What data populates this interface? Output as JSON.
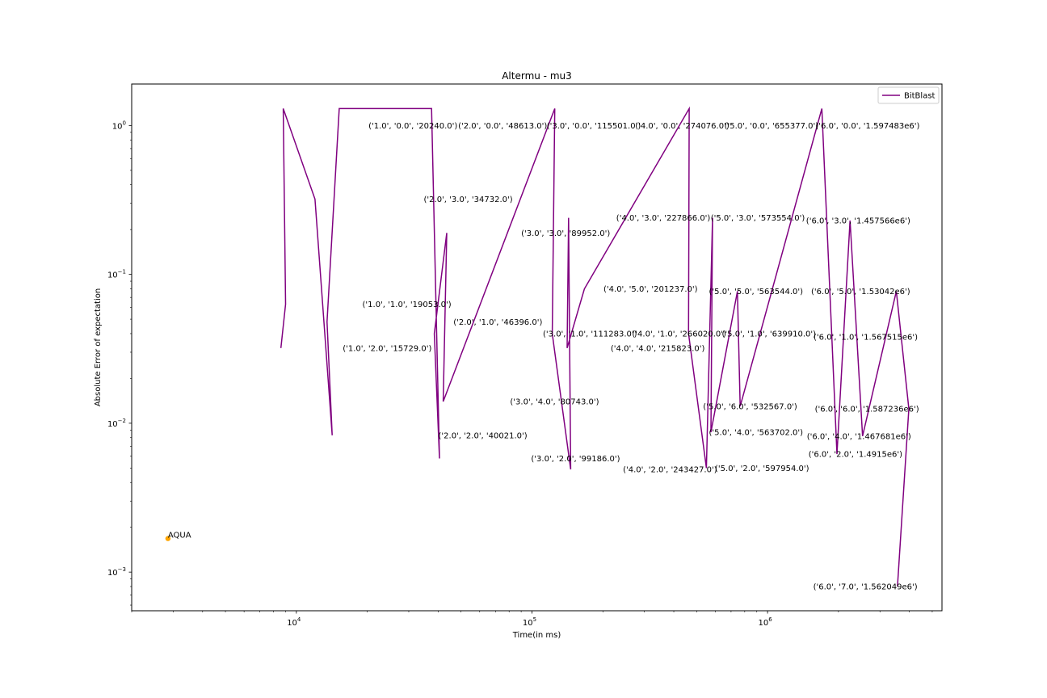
{
  "chart_data": {
    "type": "line",
    "title": "Altermu - mu3",
    "xlabel": "Time(in ms)",
    "ylabel": "Absolute Error of expectation",
    "xscale": "log",
    "yscale": "log",
    "xlim": [
      2000,
      5500000
    ],
    "ylim": [
      0.00055,
      1.9
    ],
    "grid": false,
    "legend": {
      "position": "upper right",
      "entries": [
        {
          "label": "BitBlast",
          "color": "#800080"
        }
      ]
    },
    "x_ticks": [
      {
        "value": 10000,
        "base": "10",
        "exp": "4"
      },
      {
        "value": 100000,
        "base": "10",
        "exp": "5"
      },
      {
        "value": 1000000,
        "base": "10",
        "exp": "6"
      }
    ],
    "y_ticks": [
      {
        "value": 0.001,
        "base": "10",
        "exp": "−3"
      },
      {
        "value": 0.01,
        "base": "10",
        "exp": "−2"
      },
      {
        "value": 0.1,
        "base": "10",
        "exp": "−1"
      },
      {
        "value": 1,
        "base": "10",
        "exp": "0"
      }
    ],
    "series": [
      {
        "name": "BitBlast",
        "color": "#800080",
        "points": [
          {
            "x": 20240,
            "y": 1.0,
            "label": "('1.0', '0.0', '20240.0')"
          },
          {
            "x": 19053,
            "y": 0.063,
            "label": "('1.0', '1.0', '19053.0')"
          },
          {
            "x": 15729,
            "y": 0.032,
            "label": "('1.0', '2.0', '15729.0')"
          },
          {
            "x": 48613,
            "y": 1.0,
            "label": "('2.0', '0.0', '48613.0')"
          },
          {
            "x": 46396,
            "y": 0.048,
            "label": "('2.0', '1.0', '46396.0')"
          },
          {
            "x": 40021,
            "y": 0.0083,
            "label": "('2.0', '2.0', '40021.0')"
          },
          {
            "x": 34732,
            "y": 0.32,
            "label": "('2.0', '3.0', '34732.0')"
          },
          {
            "x": 115501,
            "y": 1.0,
            "label": "('3.0', '0.0', '115501.0')"
          },
          {
            "x": 111283,
            "y": 0.04,
            "label": "('3.0', '1.0', '111283.0')"
          },
          {
            "x": 99186,
            "y": 0.0058,
            "label": "('3.0', '2.0', '99186.0')"
          },
          {
            "x": 89952,
            "y": 0.19,
            "label": "('3.0', '3.0', '89952.0')"
          },
          {
            "x": 80743,
            "y": 0.014,
            "label": "('3.0', '4.0', '80743.0')"
          },
          {
            "x": 274076,
            "y": 1.0,
            "label": "('4.0', '0.0', '274076.0')"
          },
          {
            "x": 266020,
            "y": 0.04,
            "label": "('4.0', '1.0', '266020.0')"
          },
          {
            "x": 243427,
            "y": 0.0049,
            "label": "('4.0', '2.0', '243427.0')"
          },
          {
            "x": 227866,
            "y": 0.24,
            "label": "('4.0', '3.0', '227866.0')"
          },
          {
            "x": 215823,
            "y": 0.032,
            "label": "('4.0', '4.0', '215823.0')"
          },
          {
            "x": 201237,
            "y": 0.08,
            "label": "('4.0', '5.0', '201237.0')"
          },
          {
            "x": 655377,
            "y": 1.0,
            "label": "('5.0', '0.0', '655377.0')"
          },
          {
            "x": 639910,
            "y": 0.04,
            "label": "('5.0', '1.0', '639910.0')"
          },
          {
            "x": 597954,
            "y": 0.005,
            "label": "('5.0', '2.0', '597954.0')"
          },
          {
            "x": 573554,
            "y": 0.24,
            "label": "('5.0', '3.0', '573554.0')"
          },
          {
            "x": 563702,
            "y": 0.0087,
            "label": "('5.0', '4.0', '563702.0')"
          },
          {
            "x": 563544,
            "y": 0.077,
            "label": "('5.0', '5.0', '563544.0')"
          },
          {
            "x": 532567,
            "y": 0.013,
            "label": "('5.0', '6.0', '532567.0')"
          },
          {
            "x": 1597483,
            "y": 1.0,
            "label": "('6.0', '0.0', '1.597483e6')"
          },
          {
            "x": 1567515,
            "y": 0.038,
            "label": "('6.0', '1.0', '1.567515e6')"
          },
          {
            "x": 1491500,
            "y": 0.0062,
            "label": "('6.0', '2.0', '1.4915e6')"
          },
          {
            "x": 1457566,
            "y": 0.23,
            "label": "('6.0', '3.0', '1.457566e6')"
          },
          {
            "x": 1467681,
            "y": 0.0082,
            "label": "('6.0', '4.0', '1.467681e6')"
          },
          {
            "x": 1530420,
            "y": 0.077,
            "label": "('6.0', '5.0', '1.53042e6')"
          },
          {
            "x": 1587236,
            "y": 0.0125,
            "label": "('6.0', '6.0', '1.587236e6')"
          },
          {
            "x": 1562049,
            "y": 0.0008,
            "label": "('6.0', '7.0', '1.562049e6')"
          }
        ],
        "line_path": [
          {
            "x": 8600,
            "y": 0.032
          },
          {
            "x": 9000,
            "y": 0.063
          },
          {
            "x": 8800,
            "y": 1.3
          },
          {
            "x": 12000,
            "y": 0.32
          },
          {
            "x": 14200,
            "y": 0.0083
          },
          {
            "x": 13500,
            "y": 0.048
          },
          {
            "x": 15200,
            "y": 1.3
          },
          {
            "x": 37500,
            "y": 1.3
          },
          {
            "x": 40500,
            "y": 0.0058
          },
          {
            "x": 38500,
            "y": 0.04
          },
          {
            "x": 43500,
            "y": 0.19
          },
          {
            "x": 42000,
            "y": 0.014
          },
          {
            "x": 125000,
            "y": 1.3
          },
          {
            "x": 122000,
            "y": 0.04
          },
          {
            "x": 146000,
            "y": 0.0049
          },
          {
            "x": 143000,
            "y": 0.24
          },
          {
            "x": 141000,
            "y": 0.032
          },
          {
            "x": 167000,
            "y": 0.08
          },
          {
            "x": 465000,
            "y": 1.3
          },
          {
            "x": 462000,
            "y": 0.04
          },
          {
            "x": 550000,
            "y": 0.005
          },
          {
            "x": 584000,
            "y": 0.24
          },
          {
            "x": 575000,
            "y": 0.0087
          },
          {
            "x": 745000,
            "y": 0.077
          },
          {
            "x": 765000,
            "y": 0.013
          },
          {
            "x": 1700000,
            "y": 1.3
          },
          {
            "x": 1970000,
            "y": 0.0062
          },
          {
            "x": 2240000,
            "y": 0.23
          },
          {
            "x": 2530000,
            "y": 0.0082
          },
          {
            "x": 3520000,
            "y": 0.077
          },
          {
            "x": 3980000,
            "y": 0.0125
          },
          {
            "x": 3560000,
            "y": 0.0008
          }
        ]
      },
      {
        "name": "AQUA",
        "color": "#ffa500",
        "points": [
          {
            "x": 2850,
            "y": 0.00168,
            "label": "AQUA"
          }
        ]
      }
    ]
  }
}
